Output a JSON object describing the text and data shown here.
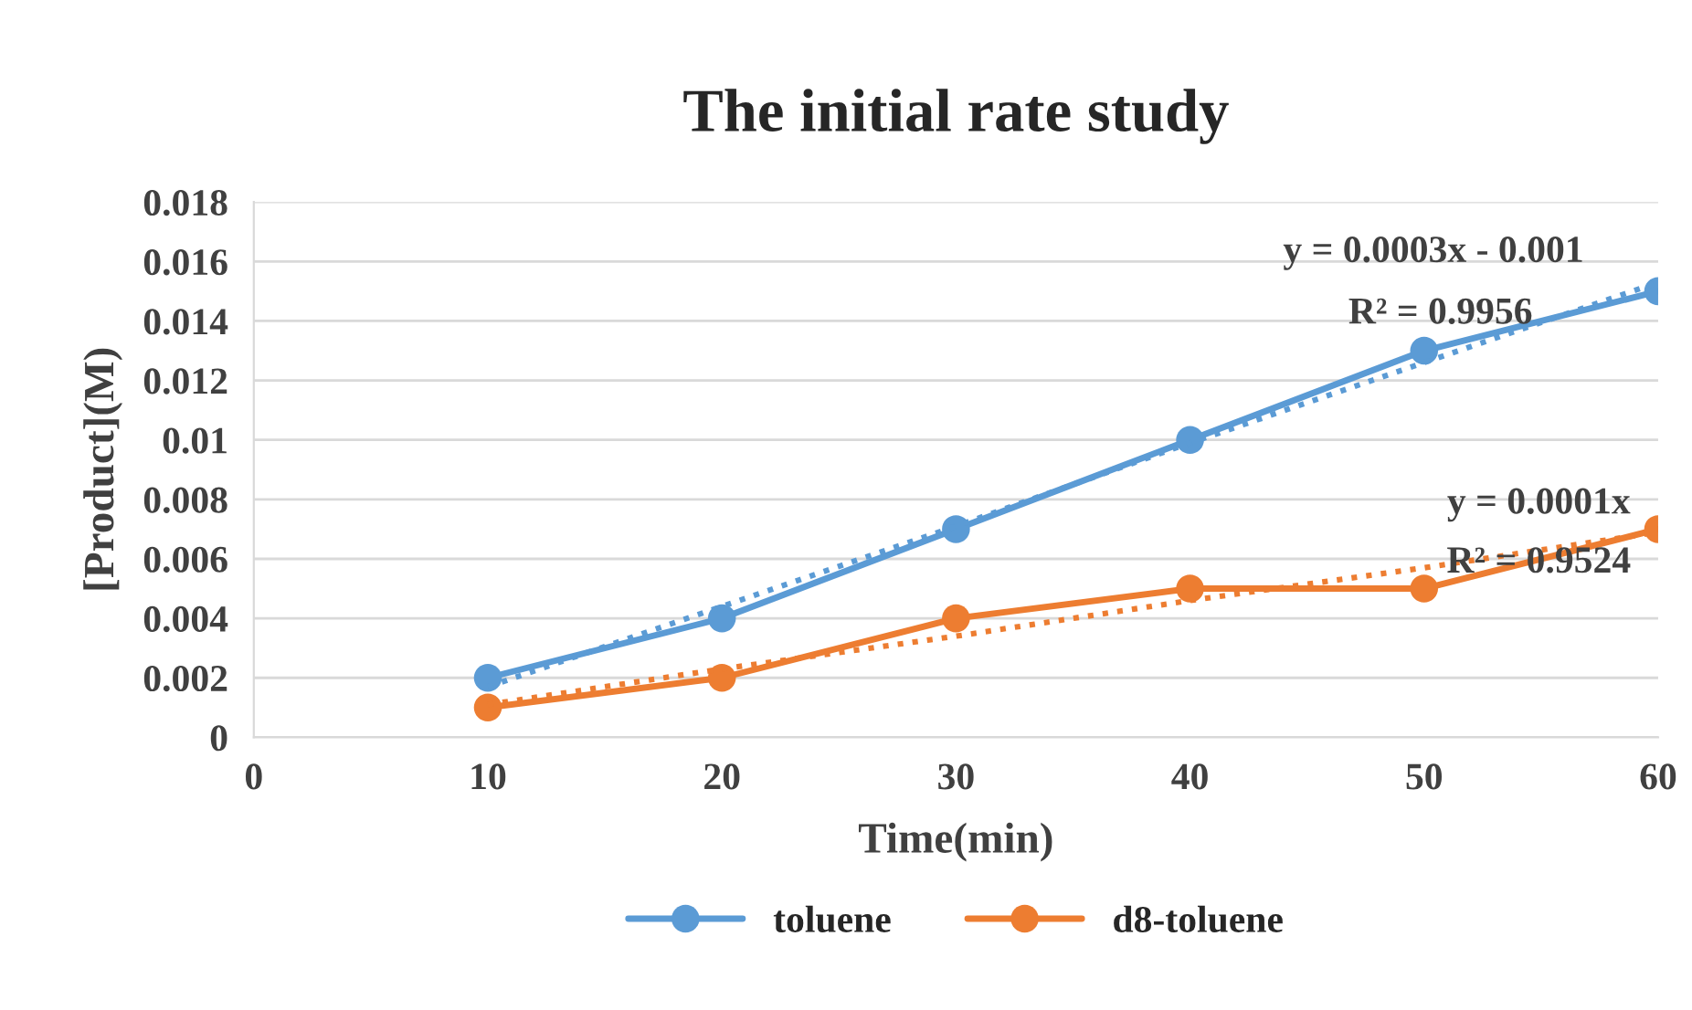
{
  "chart_data": {
    "type": "line",
    "title": "The initial rate study",
    "xlabel": "Time(min)",
    "ylabel": "[Product](M)",
    "x": [
      10,
      20,
      30,
      40,
      50,
      60
    ],
    "series": [
      {
        "name": "toluene",
        "color": "#5b9bd5",
        "values": [
          0.002,
          0.004,
          0.007,
          0.01,
          0.013,
          0.015
        ],
        "marker": "circle",
        "line_style": "solid"
      },
      {
        "name": "d8-toluene",
        "color": "#ed7d31",
        "values": [
          0.001,
          0.002,
          0.004,
          0.005,
          0.005,
          0.007
        ],
        "marker": "circle",
        "line_style": "solid"
      },
      {
        "color": "#5b9bd5",
        "values": [
          0.0017,
          0.0044,
          0.0071,
          0.0099,
          0.0126,
          0.0153
        ],
        "marker": "none",
        "line_style": "dotted"
      },
      {
        "color": "#ed7d31",
        "values": [
          0.0011,
          0.0023,
          0.0034,
          0.0046,
          0.0057,
          0.0069
        ],
        "marker": "none",
        "line_style": "dotted"
      }
    ],
    "annotations": [
      "y = 0.0003x - 0.001",
      "R² = 0.9956",
      "y = 0.0001x",
      "R² = 0.9524"
    ],
    "xlim": [
      0,
      60
    ],
    "xticks": [
      0,
      10,
      20,
      30,
      40,
      50,
      60
    ],
    "ylim": [
      0,
      0.018
    ],
    "yticks": [
      0,
      0.002,
      0.004,
      0.006,
      0.008,
      0.01,
      0.012,
      0.014,
      0.016,
      0.018
    ],
    "grid": "y",
    "legend": "bottom"
  }
}
